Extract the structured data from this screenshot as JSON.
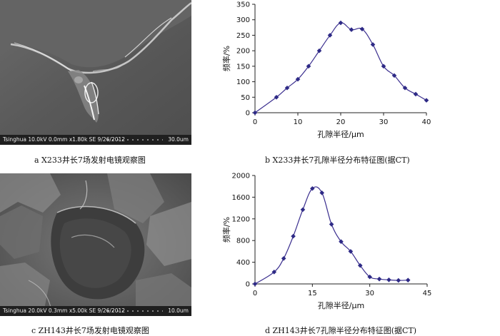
{
  "panels": {
    "a": {
      "caption": "a  X233井长7场发射电镜观察图",
      "sem_info": "Tsinghua 10.0kV 0.0mm x1.80k SE 9/26/2012",
      "scale": "30.0um"
    },
    "c": {
      "caption": "c  ZH143井长7场发射电镜观察图",
      "sem_info": "Tsinghua 20.0kV 0.3mm x5.00k SE 9/26/2012",
      "scale": "10.0um"
    },
    "b": {
      "caption": "b  X233井长7孔隙半径分布特征图(据CT)"
    },
    "d": {
      "caption": "d  ZH143井长7孔隙半径分布特征图(据CT)"
    }
  },
  "colors": {
    "series": "#3b2f8f",
    "marker": "#2e2a86"
  },
  "chart_data": [
    {
      "type": "line",
      "xlabel": "孔隙半径/μm",
      "ylabel": "频率/%",
      "xlim": [
        0,
        40
      ],
      "ylim": [
        0,
        350
      ],
      "xticks": [
        "0",
        "10",
        "20",
        "30",
        "40"
      ],
      "yticks": [
        "0",
        "50",
        "100",
        "150",
        "200",
        "250",
        "300",
        "350"
      ],
      "x": [
        0,
        5,
        7.5,
        10,
        12.5,
        15,
        17.5,
        20,
        22.5,
        25,
        27.5,
        30,
        32.5,
        35,
        37.5,
        40
      ],
      "values": [
        0,
        50,
        80,
        108,
        150,
        200,
        250,
        290,
        268,
        270,
        220,
        150,
        120,
        80,
        60,
        40
      ]
    },
    {
      "type": "line",
      "xlabel": "孔隙半径/μm",
      "ylabel": "频率/%",
      "xlim": [
        0,
        45
      ],
      "ylim": [
        0,
        2000
      ],
      "xticks": [
        "0",
        "15",
        "30",
        "45"
      ],
      "yticks": [
        "0",
        "400",
        "800",
        "1200",
        "1600",
        "2000"
      ],
      "x": [
        0,
        5,
        7.5,
        10,
        12.5,
        15,
        17.5,
        20,
        22.5,
        25,
        27.5,
        30,
        32.5,
        35,
        37.5,
        40
      ],
      "values": [
        0,
        220,
        470,
        880,
        1370,
        1760,
        1680,
        1100,
        780,
        600,
        340,
        130,
        90,
        75,
        65,
        70
      ]
    }
  ]
}
